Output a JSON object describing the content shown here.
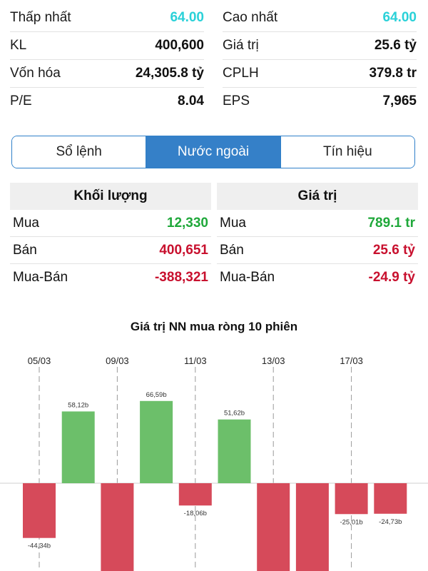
{
  "stats": {
    "left": [
      {
        "label": "Thấp nhất",
        "value": "64.00",
        "accent": true
      },
      {
        "label": "KL",
        "value": "400,600",
        "accent": false
      },
      {
        "label": "Vốn hóa",
        "value": "24,305.8 tỷ",
        "accent": false
      },
      {
        "label": "P/E",
        "value": "8.04",
        "accent": false
      }
    ],
    "right": [
      {
        "label": "Cao nhất",
        "value": "64.00",
        "accent": true
      },
      {
        "label": "Giá trị",
        "value": "25.6 tỷ",
        "accent": false
      },
      {
        "label": "CPLH",
        "value": "379.8 tr",
        "accent": false
      },
      {
        "label": "EPS",
        "value": "7,965",
        "accent": false
      }
    ]
  },
  "tabs": [
    {
      "label": "Sổ lệnh",
      "active": false
    },
    {
      "label": "Nước ngoài",
      "active": true
    },
    {
      "label": "Tín hiệu",
      "active": false
    }
  ],
  "foreign": {
    "volume": {
      "header": "Khối lượng",
      "rows": [
        {
          "label": "Mua",
          "value": "12,330",
          "tone": "green"
        },
        {
          "label": "Bán",
          "value": "400,651",
          "tone": "red"
        },
        {
          "label": "Mua-Bán",
          "value": "-388,321",
          "tone": "red"
        }
      ]
    },
    "value": {
      "header": "Giá trị",
      "rows": [
        {
          "label": "Mua",
          "value": "789.1 tr",
          "tone": "green"
        },
        {
          "label": "Bán",
          "value": "25.6 tỷ",
          "tone": "red"
        },
        {
          "label": "Mua-Bán",
          "value": "-24.9 tỷ",
          "tone": "red"
        }
      ]
    }
  },
  "colors": {
    "accent": "#3580c8",
    "positive": "#6cbf6a",
    "negative": "#d64a5a",
    "cyan": "#2ad1d8"
  },
  "chart": {
    "title": "Giá trị NN mua ròng 10 phiên"
  },
  "chart_data": {
    "type": "bar",
    "title": "Giá trị NN mua ròng 10 phiên",
    "unit": "b",
    "date_ticks": [
      "05/03",
      "09/03",
      "11/03",
      "13/03",
      "17/03"
    ],
    "values": [
      -44.34,
      58.12,
      null,
      66.59,
      -18.06,
      51.62,
      null,
      null,
      -25.01,
      -24.73
    ],
    "labels": [
      "-44,34b",
      "58,12b",
      "",
      "66,59b",
      "-18,06b",
      "51,62b",
      "",
      "",
      "-25,01b",
      "-24,73b"
    ],
    "offscreen_negative": [
      2,
      6,
      7
    ],
    "grid": "dashed verticals at date ticks"
  }
}
